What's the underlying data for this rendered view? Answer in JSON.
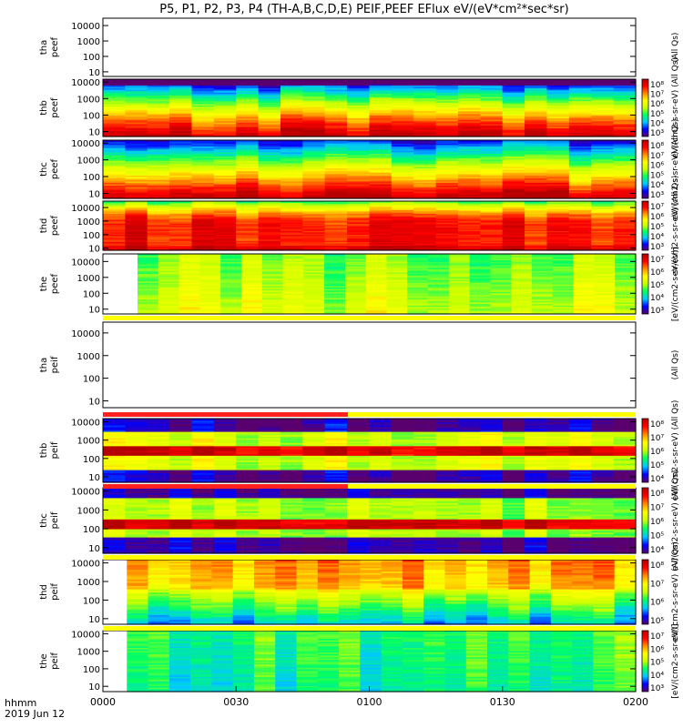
{
  "page": {
    "title": "P5, P1, P2, P3, P4 (TH-A,B,C,D,E) PEIF,PEEF EFlux eV/(eV*cm²*sec*sr)",
    "time_label": "hhmm",
    "date_label": "2019 Jun 12"
  },
  "colors": {
    "colormap": [
      "#5a006e",
      "#0000ff",
      "#00c8ff",
      "#00ff64",
      "#c8ff00",
      "#ffff00",
      "#ff8c00",
      "#ff0000",
      "#b40000"
    ],
    "flag_yellow": "#ffff00",
    "flag_red": "#ff2020",
    "background": "#ffffff"
  },
  "chart_data": {
    "type": "heatmap",
    "x_ticks": [
      "0000",
      "0030",
      "0100",
      "0130",
      "0200"
    ],
    "x_range": [
      "00:00",
      "02:00"
    ],
    "y_scale": "log",
    "y_ticks": [
      "10",
      "100",
      "1000",
      "10000"
    ],
    "panels": [
      {
        "label": [
          "tha",
          "peef"
        ],
        "empty": true,
        "ylim": [
          5,
          30000
        ],
        "cbar_label": "(All Qs)",
        "cbar_ticks": []
      },
      {
        "label": [
          "thb",
          "peef"
        ],
        "ylim": [
          5,
          15000
        ],
        "cbar_label": "eV/(cm2-s-sr-eV) (All Qs)",
        "cbar_ticks": [
          "10⁸",
          "10⁷",
          "10⁶",
          "10⁵",
          "10⁴",
          "10³"
        ]
      },
      {
        "label": [
          "thc",
          "peef"
        ],
        "ylim": [
          5,
          15000
        ],
        "cbar_label": "eV/(cm2-s-sr-eV) (All Qs)",
        "cbar_ticks": [
          "10⁸",
          "10⁷",
          "10⁶",
          "10⁵",
          "10⁴",
          "10³"
        ]
      },
      {
        "label": [
          "thd",
          "peef"
        ],
        "ylim": [
          7,
          30000
        ],
        "cbar_label": "eV/(cm2-s-sr-eV) (All Qs)",
        "cbar_ticks": [
          "10⁷",
          "10⁶",
          "10⁵",
          "10⁴",
          "10³"
        ]
      },
      {
        "label": [
          "the",
          "peef"
        ],
        "ylim": [
          5,
          30000
        ],
        "cbar_label": "[eV/(cm2-s-sr-eV)]",
        "cbar_ticks": [
          "10⁷",
          "10⁶",
          "10⁵",
          "10⁴",
          "10³"
        ]
      },
      {
        "label": [
          "tha",
          "peif"
        ],
        "empty": true,
        "ylim": [
          5,
          30000
        ],
        "cbar_label": "(All Qs)",
        "cbar_ticks": []
      },
      {
        "label": [
          "thb",
          "peif"
        ],
        "ylim": [
          5,
          15000
        ],
        "cbar_label": "eV/(cm2-s-sr-eV) (All Qs)",
        "cbar_ticks": [
          "10⁸",
          "10⁷",
          "10⁶",
          "10⁵",
          "10⁴"
        ]
      },
      {
        "label": [
          "thc",
          "peif"
        ],
        "ylim": [
          5,
          15000
        ],
        "cbar_label": "eV/(cm2-s-sr-eV) (All Qs)",
        "cbar_ticks": [
          "10⁸",
          "10⁷",
          "10⁶",
          "10⁵",
          "10⁴"
        ]
      },
      {
        "label": [
          "thd",
          "peif"
        ],
        "ylim": [
          5,
          15000
        ],
        "cbar_label": "eV/(cm2-s-sr-eV) (All Qs)",
        "cbar_ticks": [
          "10⁸",
          "10⁷",
          "10⁶",
          "10⁵"
        ]
      },
      {
        "label": [
          "the",
          "peif"
        ],
        "ylim": [
          5,
          15000
        ],
        "cbar_label": "[eV/(cm2-s-sr-eV)]",
        "cbar_ticks": [
          "10⁷",
          "10⁶",
          "10⁵",
          "10⁴",
          "10³"
        ]
      }
    ]
  }
}
